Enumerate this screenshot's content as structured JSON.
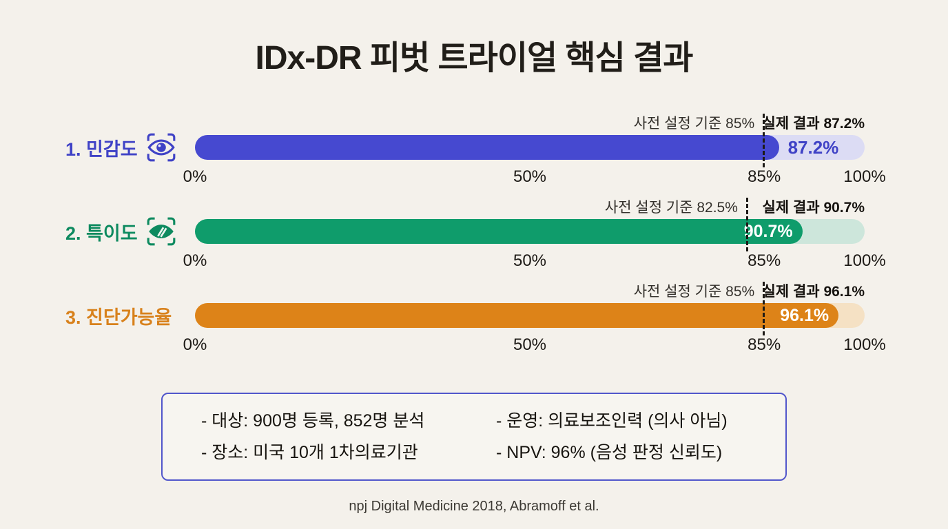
{
  "page": {
    "background_color": "#F4F1EB"
  },
  "chart_data": {
    "type": "bar",
    "orientation": "horizontal",
    "title": "IDx-DR 피벗 트라이얼 핵심 결과",
    "xlim": [
      0,
      100
    ],
    "x_ticks": [
      "0%",
      "50%",
      "85%",
      "100%"
    ],
    "x_tick_positions": [
      0,
      50,
      85,
      100
    ],
    "grid": false,
    "dash_line_color": "#1D1A16",
    "bars": [
      {
        "label": "1. 민감도",
        "icon": "eye-scan-icon",
        "value": 87.2,
        "value_label": "87.2%",
        "value_label_placement": "outside",
        "criterion": 85,
        "criterion_label": "사전 설정 기준 85%",
        "result_label": "실제 결과 87.2%",
        "fill_color": "#4649D0",
        "track_color": "#DCDCF4",
        "label_color": "#3F42C6"
      },
      {
        "label": "2. 특이도",
        "icon": "eye-scan-leaf-icon",
        "value": 90.7,
        "value_label": "90.7%",
        "value_label_placement": "inside",
        "criterion": 82.5,
        "criterion_label": "사전 설정 기준 82.5%",
        "result_label": "실제 결과 90.7%",
        "fill_color": "#0F9C6B",
        "track_color": "#CDE6DB",
        "label_color": "#0D8A5F"
      },
      {
        "label": "3. 진단가능율",
        "icon": null,
        "value": 96.1,
        "value_label": "96.1%",
        "value_label_placement": "inside",
        "criterion": 85,
        "criterion_label": "사전 설정 기준 85%",
        "result_label": "실제 결과 96.1%",
        "fill_color": "#DD8318",
        "track_color": "#F5E1C4",
        "label_color": "#D8811B"
      }
    ]
  },
  "info_box": {
    "border_color": "#5156CB",
    "left_items": [
      "- 대상: 900명 등록, 852명 분석",
      "- 장소: 미국 10개 1차의료기관"
    ],
    "right_items": [
      "- 운영: 의료보조인력 (의사 아님)",
      "- NPV: 96% (음성 판정 신뢰도)"
    ]
  },
  "footer": {
    "source": "npj Digital Medicine 2018, Abramoff et al."
  }
}
